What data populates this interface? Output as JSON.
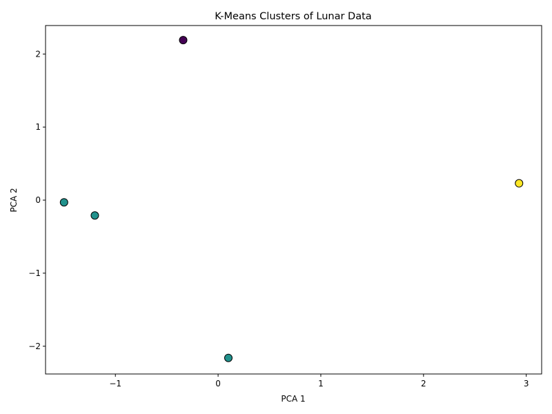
{
  "chart_data": {
    "type": "scatter",
    "title": "K-Means Clusters of Lunar Data",
    "xlabel": "PCA 1",
    "ylabel": "PCA 2",
    "xlim": [
      -1.68,
      3.15
    ],
    "ylim": [
      -2.38,
      2.39
    ],
    "xticks": [
      {
        "value": -1,
        "label": "−1"
      },
      {
        "value": 0,
        "label": "0"
      },
      {
        "value": 1,
        "label": "1"
      },
      {
        "value": 2,
        "label": "2"
      },
      {
        "value": 3,
        "label": "3"
      }
    ],
    "yticks": [
      {
        "value": -2,
        "label": "−2"
      },
      {
        "value": -1,
        "label": "−1"
      },
      {
        "value": 0,
        "label": "0"
      },
      {
        "value": 1,
        "label": "1"
      },
      {
        "value": 2,
        "label": "2"
      }
    ],
    "grid": false,
    "legend": "none",
    "cluster_colors": [
      "#440154",
      "#21918c",
      "#fde725"
    ],
    "points": [
      {
        "x": -0.34,
        "y": 2.19,
        "cluster": 0
      },
      {
        "x": -1.5,
        "y": -0.03,
        "cluster": 1
      },
      {
        "x": -1.2,
        "y": -0.21,
        "cluster": 1
      },
      {
        "x": 0.1,
        "y": -2.16,
        "cluster": 1
      },
      {
        "x": 2.93,
        "y": 0.23,
        "cluster": 2
      }
    ]
  }
}
